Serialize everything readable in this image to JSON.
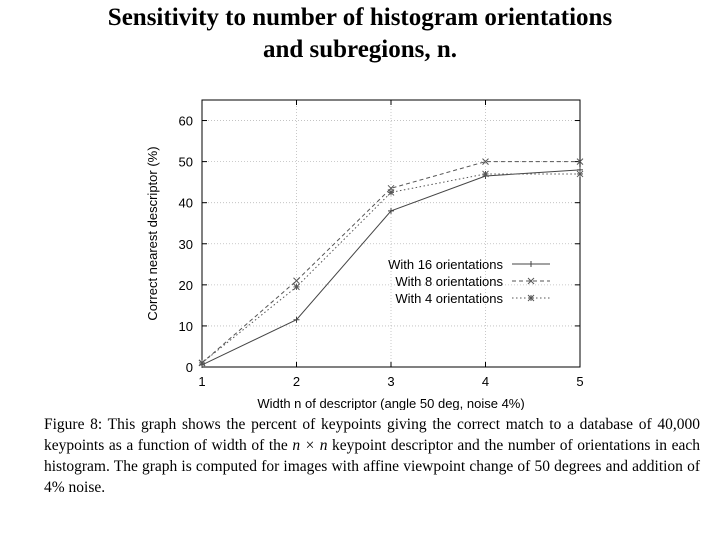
{
  "title": {
    "line1": "Sensitivity to number of histogram orientations",
    "line2": "and subregions, n."
  },
  "chart_data": {
    "type": "line",
    "xlabel": "Width n of descriptor (angle 50 deg, noise 4%)",
    "ylabel": "Correct nearest descriptor (%)",
    "x": [
      1,
      2,
      3,
      4,
      5
    ],
    "xlim": [
      1,
      5
    ],
    "ylim": [
      0,
      65
    ],
    "yticks": [
      0,
      10,
      20,
      30,
      40,
      50,
      60
    ],
    "grid": true,
    "legend_position": "right",
    "series": [
      {
        "name": "With 16 orientations",
        "values": [
          0.5,
          11.5,
          38,
          46.5,
          48
        ],
        "color": "#444444",
        "dash": "",
        "marker": "+"
      },
      {
        "name": "With 8 orientations",
        "values": [
          1,
          21,
          43.5,
          50,
          50
        ],
        "color": "#555555",
        "dash": "4,3",
        "marker": "x"
      },
      {
        "name": "With 4 orientations",
        "values": [
          1,
          19.5,
          42.5,
          47,
          47
        ],
        "color": "#555555",
        "dash": "1.5,2.5",
        "marker": "*"
      }
    ]
  },
  "caption": {
    "prefix": "Figure 8: This graph shows the percent of keypoints giving the correct match to a database of 40,000 keypoints as a function of width of the ",
    "math": "n × n",
    "suffix": " keypoint descriptor and the number of orientations in each histogram. The graph is computed for images with affine viewpoint change of 50 degrees and addition of 4% noise."
  }
}
